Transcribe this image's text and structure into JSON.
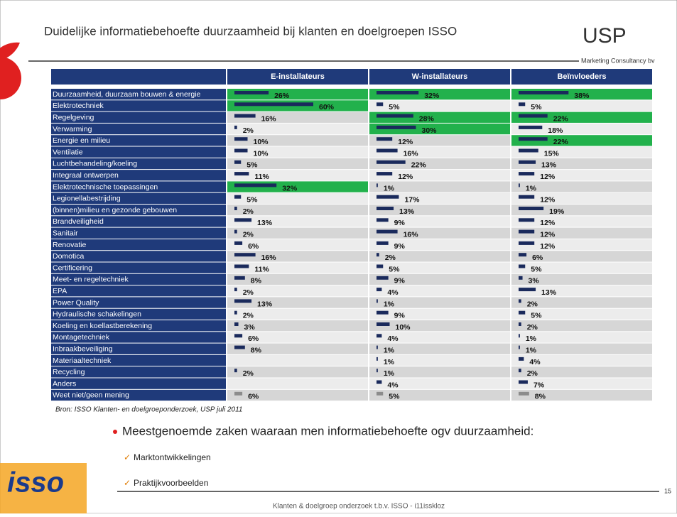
{
  "chart_data": {
    "type": "bar",
    "categories": [
      "Duurzaamheid, duurzaam bouwen & energie",
      "Elektrotechniek",
      "Regelgeving",
      "Verwarming",
      "Energie en milieu",
      "Ventilatie",
      "Luchtbehandeling/koeling",
      "Integraal ontwerpen",
      "Elektrotechnische toepassingen",
      "Legionellabestrijding",
      "(binnen)milieu en gezonde gebouwen",
      "Brandveiligheid",
      "Sanitair",
      "Renovatie",
      "Domotica",
      "Certificering",
      "Meet- en regeltechniek",
      "EPA",
      "Power Quality",
      "Hydraulische schakelingen",
      "Koeling en koellastberekening",
      "Montagetechniek",
      "Inbraakbeveiliging",
      "Materiaaltechniek",
      "Recycling",
      "Anders",
      "Weet niet/geen mening"
    ],
    "series": [
      {
        "name": "E-installateurs",
        "color": "#1a2a5c",
        "highlight": [
          0,
          1,
          8
        ],
        "values": [
          26,
          60,
          16,
          2,
          10,
          10,
          5,
          11,
          32,
          5,
          2,
          13,
          2,
          6,
          16,
          11,
          8,
          2,
          13,
          2,
          3,
          6,
          8,
          null,
          2,
          null,
          6
        ],
        "value_labels": [
          "26%",
          "60%",
          "16%",
          "2%",
          "10%",
          "10%",
          "5%",
          "11%",
          "32%",
          "5%",
          "2%",
          "13%",
          "2%",
          "6%",
          "16%",
          "11%",
          "8%",
          "2%",
          "13%",
          "2%",
          "3%",
          "6%",
          "8%",
          null,
          "2%",
          null,
          "6%"
        ]
      },
      {
        "name": "W-installateurs",
        "color": "#1a2a5c",
        "highlight": [
          0,
          2,
          3
        ],
        "values": [
          32,
          5,
          28,
          30,
          12,
          16,
          22,
          12,
          1,
          17,
          13,
          9,
          16,
          9,
          2,
          5,
          9,
          4,
          1,
          9,
          10,
          4,
          1,
          1,
          1,
          4,
          5
        ],
        "value_labels": [
          "32%",
          "5%",
          "28%",
          "30%",
          "12%",
          "16%",
          "22%",
          "12%",
          "1%",
          "17%",
          "13%",
          "9%",
          "16%",
          "9%",
          "2%",
          "5%",
          "9%",
          "4%",
          "1%",
          "9%",
          "10%",
          "4%",
          "1%",
          "1%",
          "1%",
          "4%",
          "5%"
        ]
      },
      {
        "name": "Beïnvloeders",
        "color": "#1a2a5c",
        "highlight": [
          0,
          2,
          4
        ],
        "values": [
          38,
          5,
          22,
          18,
          22,
          15,
          13,
          12,
          1,
          12,
          19,
          12,
          12,
          12,
          6,
          5,
          3,
          13,
          2,
          5,
          2,
          1,
          1,
          4,
          2,
          7,
          8
        ],
        "value_labels": [
          "38%",
          "5%",
          "22%",
          "18%",
          "22%",
          "15%",
          "13%",
          "12%",
          "1%",
          "12%",
          "19%",
          "12%",
          "12%",
          "12%",
          "6%",
          "5%",
          "3%",
          "13%",
          "2%",
          "5%",
          "2%",
          "1%",
          "1%",
          "4%",
          "2%",
          "7%",
          "8%"
        ]
      }
    ],
    "highlight_color": "#22b14c",
    "muted": [
      26
    ],
    "muted_color": "#8c8c8c"
  },
  "slide": {
    "title": "Duidelijke informatiebehoefte duurzaamheid bij klanten en doelgroepen ISSO",
    "logo": "USP",
    "logo_sub": "Marketing Consultancy bv",
    "source": "Bron: ISSO Klanten- en doelgroeponderzoek, USP juli 2011",
    "bullet": "Meestgenoemde zaken waaraan men informatiebehoefte ogv duurzaamheid:",
    "checks": [
      "Marktontwikkelingen",
      "Praktijkvoorbeelden"
    ],
    "isso_logo": "isso",
    "footer": "Klanten & doelgroep onderzoek t.b.v. ISSO - i11isskloz",
    "page": "15"
  }
}
